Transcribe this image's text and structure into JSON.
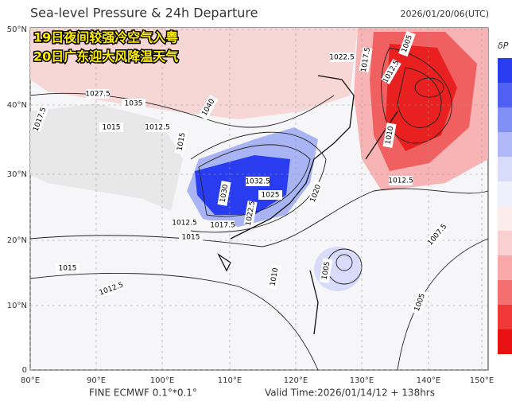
{
  "header": {
    "title": "Sea-level Pressure & 24h Departure",
    "timestamp": "2026/01/20/06(UTC)"
  },
  "overlay": {
    "line1": "19日夜间较强冷空气入粤",
    "line2": "20日广东迎大风降温天气"
  },
  "map": {
    "lat_labels": [
      "50°N",
      "40°N",
      "30°N",
      "20°N",
      "10°N",
      "0"
    ],
    "lon_labels": [
      "80°E",
      "90°E",
      "100°E",
      "110°E",
      "120°E",
      "130°E",
      "140°E",
      "150°E"
    ],
    "contour_labels": [
      "1017.5",
      "1027.5",
      "1035",
      "1040",
      "1015",
      "1012.5",
      "1015",
      "1032.5",
      "1030",
      "1025",
      "1022.5",
      "1020",
      "1017.5",
      "1015",
      "1012.5",
      "1012.5",
      "1010",
      "1005",
      "1012.5",
      "1017.5",
      "1022.5",
      "1010",
      "1005",
      "1015",
      "1012.5",
      "1007.5",
      "1005"
    ]
  },
  "colorbar": {
    "label": "δP"
  },
  "footer": {
    "model": "FINE ECMWF 0.1°*0.1°",
    "valid_time": "Valid Time:2026/01/14/12 + 138hrs"
  }
}
